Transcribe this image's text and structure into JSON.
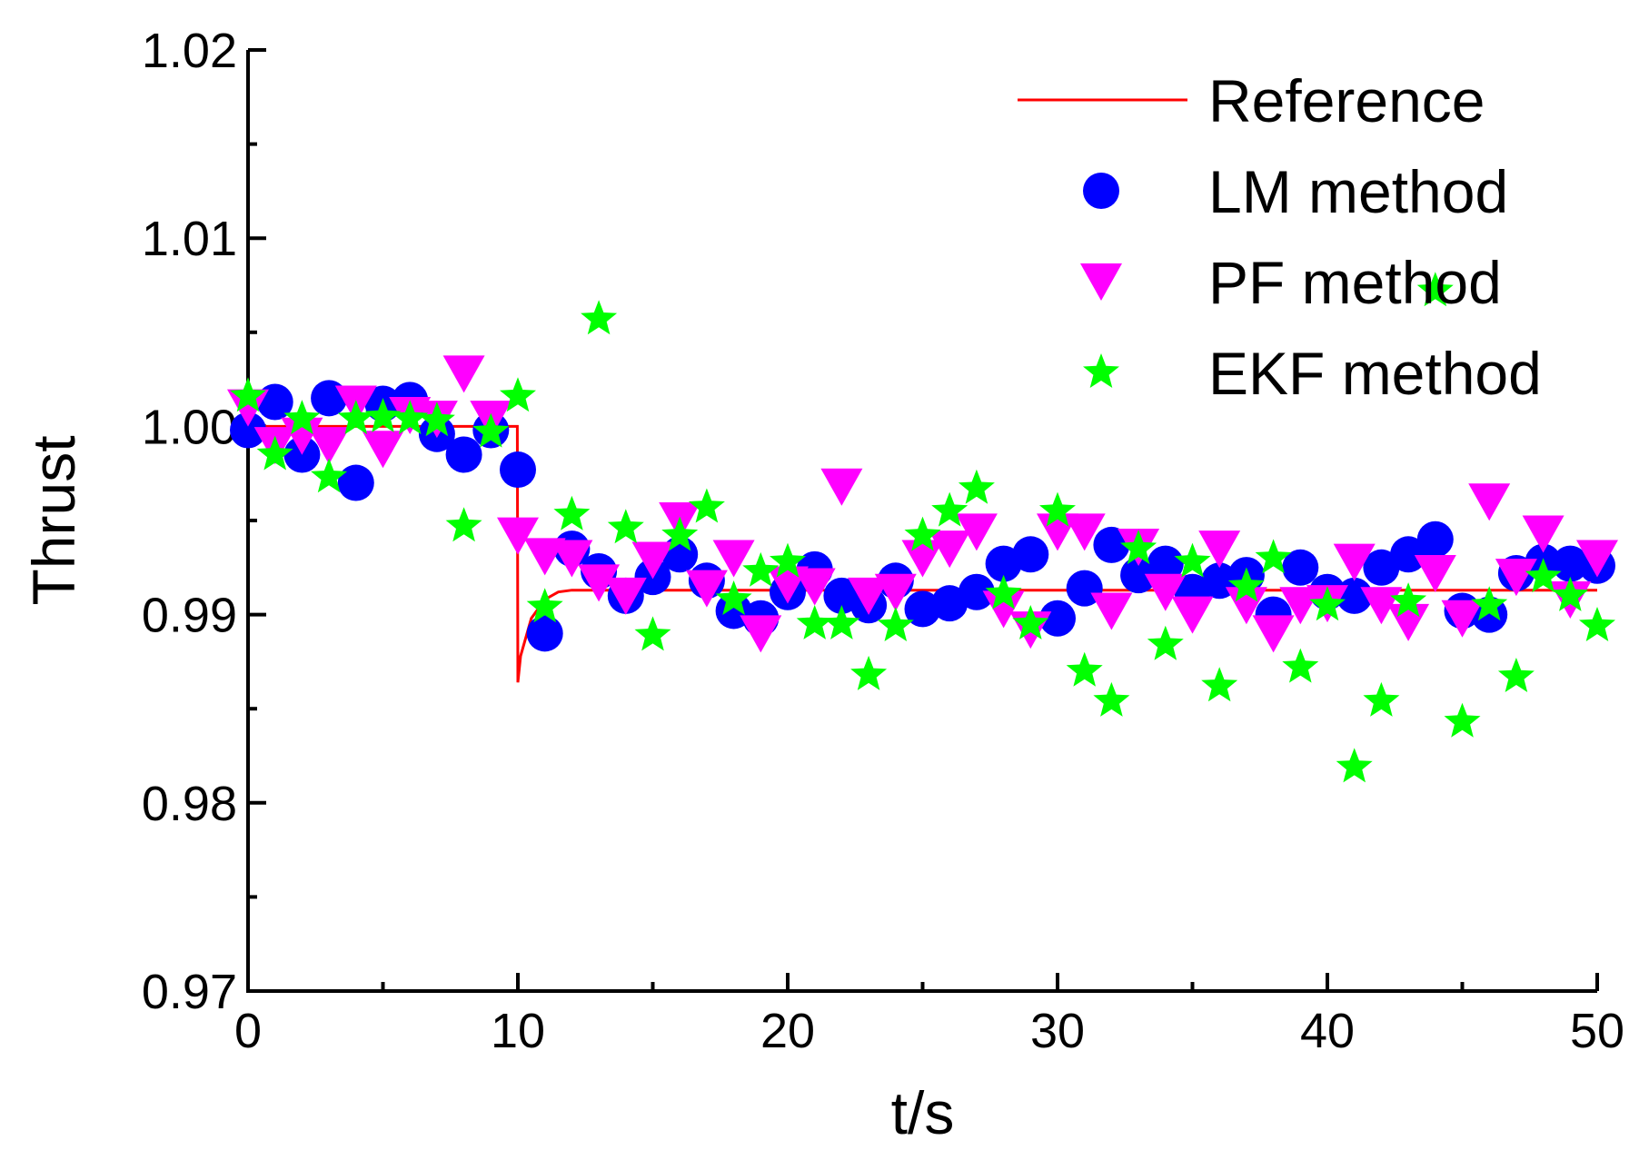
{
  "chart_data": {
    "type": "scatter",
    "title": "",
    "xlabel": "t/s",
    "ylabel": "Thrust",
    "xlim": [
      0,
      50
    ],
    "ylim": [
      0.97,
      1.02
    ],
    "xticks": [
      0,
      10,
      20,
      30,
      40,
      50
    ],
    "xtick_labels": [
      "0",
      "10",
      "20",
      "30",
      "40",
      "50"
    ],
    "yticks": [
      0.97,
      0.98,
      0.99,
      1.0,
      1.01,
      1.02
    ],
    "ytick_labels": [
      "0.97",
      "0.98",
      "0.99",
      "1.00",
      "1.01",
      "1.02"
    ],
    "grid": false,
    "legend_position": "top-right",
    "series": [
      {
        "name": "Reference",
        "kind": "line",
        "color": "#ff0000",
        "x": [
          0,
          9.98,
          10.0,
          10.1,
          10.5,
          11.0,
          11.5,
          12.0,
          50
        ],
        "y": [
          1.0,
          1.0,
          0.9864,
          0.9878,
          0.9898,
          0.9908,
          0.9912,
          0.9913,
          0.9913
        ]
      },
      {
        "name": "LM method",
        "kind": "circle",
        "color": "#0000ff",
        "x": [
          0,
          1,
          2,
          3,
          4,
          5,
          6,
          7,
          8,
          9,
          10,
          11,
          12,
          13,
          14,
          15,
          16,
          17,
          18,
          19,
          20,
          21,
          22,
          23,
          24,
          25,
          26,
          27,
          28,
          29,
          30,
          31,
          32,
          33,
          34,
          35,
          36,
          37,
          38,
          39,
          40,
          41,
          42,
          43,
          44,
          45,
          46,
          47,
          48,
          49,
          50
        ],
        "y": [
          0.9998,
          1.0013,
          0.9985,
          1.0015,
          0.997,
          1.0012,
          1.0014,
          0.9996,
          0.9985,
          0.9998,
          0.9977,
          0.989,
          0.9935,
          0.9923,
          0.991,
          0.992,
          0.9932,
          0.9918,
          0.9902,
          0.9898,
          0.9912,
          0.9924,
          0.991,
          0.9905,
          0.9918,
          0.9903,
          0.9906,
          0.9912,
          0.9927,
          0.9932,
          0.9898,
          0.9914,
          0.9937,
          0.9921,
          0.9927,
          0.9912,
          0.9918,
          0.9921,
          0.99,
          0.9925,
          0.9912,
          0.991,
          0.9925,
          0.9932,
          0.994,
          0.9902,
          0.99,
          0.9922,
          0.9928,
          0.9927,
          0.9926
        ]
      },
      {
        "name": "PF method",
        "kind": "triangle-down",
        "color": "#ff00ff",
        "x": [
          0,
          1,
          2,
          3,
          4,
          5,
          6,
          7,
          8,
          9,
          10,
          11,
          12,
          13,
          14,
          15,
          16,
          17,
          18,
          19,
          20,
          21,
          22,
          23,
          24,
          25,
          26,
          27,
          28,
          29,
          30,
          31,
          32,
          33,
          34,
          35,
          36,
          37,
          38,
          39,
          40,
          41,
          42,
          43,
          44,
          45,
          46,
          47,
          48,
          49,
          50
        ],
        "y": [
          1.001,
          0.999,
          0.9995,
          0.999,
          1.0012,
          0.9988,
          1.0006,
          1.0004,
          1.0028,
          1.0004,
          0.9942,
          0.9931,
          0.993,
          0.9917,
          0.991,
          0.9929,
          0.995,
          0.9914,
          0.993,
          0.989,
          0.9916,
          0.9915,
          0.9968,
          0.991,
          0.9912,
          0.993,
          0.9935,
          0.9944,
          0.9903,
          0.9892,
          0.9944,
          0.9944,
          0.9902,
          0.9936,
          0.9912,
          0.99,
          0.9935,
          0.9905,
          0.989,
          0.9905,
          0.9906,
          0.9928,
          0.9905,
          0.9896,
          0.9922,
          0.9898,
          0.996,
          0.992,
          0.9943,
          0.9908,
          0.993
        ]
      },
      {
        "name": "EKF method",
        "kind": "star",
        "color": "#00ff00",
        "x": [
          0,
          1,
          2,
          3,
          4,
          5,
          6,
          7,
          8,
          9,
          10,
          11,
          12,
          13,
          14,
          15,
          16,
          17,
          18,
          19,
          20,
          21,
          22,
          23,
          24,
          25,
          26,
          27,
          28,
          29,
          30,
          31,
          32,
          33,
          34,
          35,
          36,
          37,
          38,
          39,
          40,
          41,
          42,
          43,
          44,
          45,
          46,
          47,
          48,
          49,
          50
        ],
        "y": [
          1.0016,
          0.9985,
          1.0004,
          0.9973,
          1.0004,
          1.0005,
          1.0004,
          1.0003,
          0.9947,
          0.9997,
          1.0016,
          0.9904,
          0.9953,
          1.0057,
          0.9946,
          0.9889,
          0.9942,
          0.9957,
          0.9908,
          0.9923,
          0.9928,
          0.9895,
          0.9895,
          0.9868,
          0.9894,
          0.9942,
          0.9955,
          0.9967,
          0.9911,
          0.9895,
          0.9955,
          0.987,
          0.9854,
          0.9935,
          0.9884,
          0.9928,
          0.9862,
          0.9915,
          0.993,
          0.9872,
          0.9905,
          0.9819,
          0.9854,
          0.9907,
          1.0072,
          0.9843,
          0.9905,
          0.9867,
          0.992,
          0.991,
          0.9894
        ]
      }
    ]
  }
}
